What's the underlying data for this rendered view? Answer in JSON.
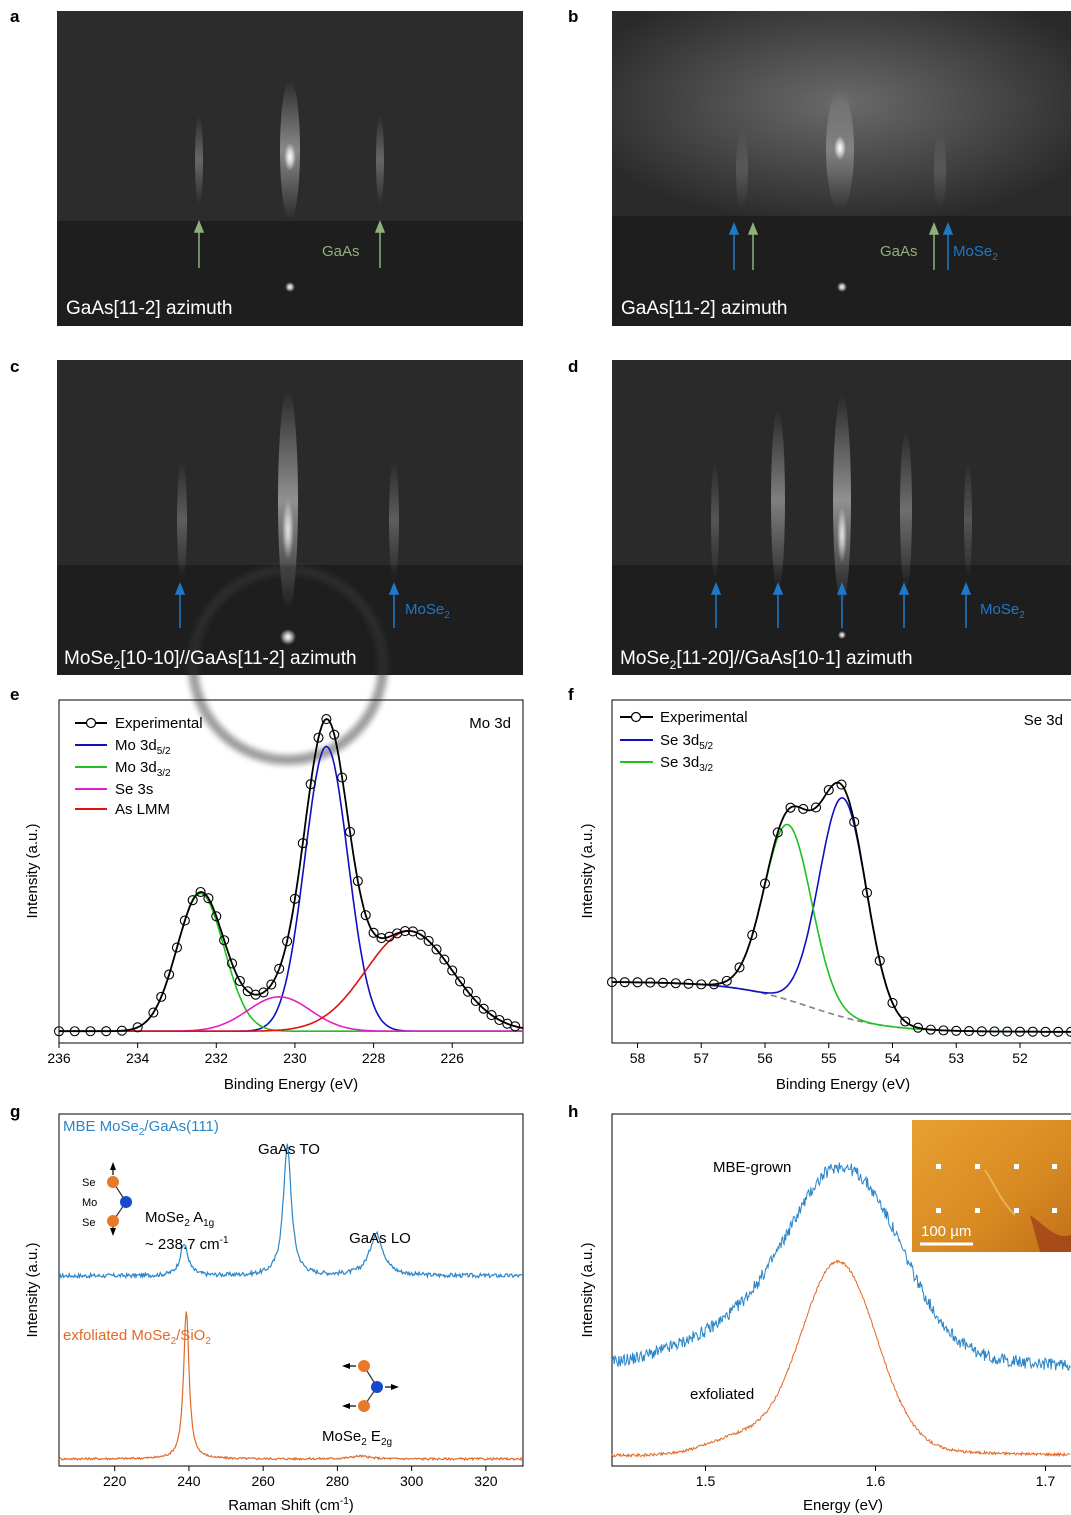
{
  "panel_letters": [
    "a",
    "b",
    "c",
    "d",
    "e",
    "f",
    "g",
    "h"
  ],
  "rheed": {
    "a": {
      "caption": "GaAs[11-2] azimuth",
      "labels": [
        {
          "text": "GaAs",
          "color": "#8fb07a"
        }
      ]
    },
    "b": {
      "caption": "GaAs[11-2] azimuth",
      "labels": [
        {
          "text": "GaAs",
          "color": "#8fb07a"
        },
        {
          "text": "MoSe",
          "sub": "2",
          "color": "#1f78c8"
        }
      ]
    },
    "c": {
      "caption_parts": [
        "MoSe",
        "2",
        "[10-10]//GaAs[11-2] azimuth"
      ],
      "labels": [
        {
          "text": "MoSe",
          "sub": "2",
          "color": "#1f78c8"
        }
      ]
    },
    "d": {
      "caption_parts": [
        "MoSe",
        "2",
        "[11-20]//GaAs[10-1] azimuth"
      ],
      "labels": [
        {
          "text": "MoSe",
          "sub": "2",
          "color": "#1f78c8"
        }
      ]
    }
  },
  "colors": {
    "black": "#000000",
    "blue": "#1010c0",
    "green": "#20c020",
    "magenta": "#e020c8",
    "red": "#e01010",
    "dash": "#808080",
    "raman_blue": "#2a86c8",
    "raman_orange": "#e06a28",
    "gaas_green": "#8fb07a",
    "mose2_blue": "#1f78c8",
    "atom_orange": "#e8782a",
    "atom_blue": "#1848d0"
  },
  "chart_data": [
    {
      "panel": "e",
      "type": "line",
      "xlabel": "Binding Energy (eV)",
      "ylabel": "Intensity (a.u.)",
      "annotation": "Mo 3d",
      "xlim": [
        236,
        224.2
      ],
      "x_ticks": [
        236,
        234,
        232,
        230,
        228,
        226
      ],
      "legend": [
        {
          "name": "Experimental",
          "color": "#000000",
          "marker": "circle"
        },
        {
          "name": "Mo 3d",
          "sub": "5/2",
          "color": "#1010c0"
        },
        {
          "name": "Mo 3d",
          "sub": "3/2",
          "color": "#20c020"
        },
        {
          "name": "Se 3s",
          "color": "#e020c8"
        },
        {
          "name": "As LMM",
          "color": "#e01010"
        }
      ],
      "components": [
        {
          "name": "Mo 3d5/2",
          "center": 229.2,
          "amplitude": 0.91,
          "width": 0.55
        },
        {
          "name": "Mo 3d3/2",
          "center": 232.4,
          "amplitude": 0.44,
          "width": 0.6
        },
        {
          "name": "Se 3s",
          "center": 230.4,
          "amplitude": 0.11,
          "width": 0.8
        },
        {
          "name": "As LMM",
          "center": 227.1,
          "amplitude": 0.32,
          "width": 1.1
        }
      ],
      "baseline": 0.012,
      "experimental_x": [
        236,
        235.6,
        235.2,
        234.8,
        234.4,
        234,
        233.6,
        233.4,
        233.2,
        233,
        232.8,
        232.6,
        232.4,
        232.2,
        232,
        231.8,
        231.6,
        231.4,
        231.2,
        231,
        230.8,
        230.6,
        230.4,
        230.2,
        230,
        229.8,
        229.6,
        229.4,
        229.2,
        229,
        228.8,
        228.6,
        228.4,
        228.2,
        228,
        227.8,
        227.6,
        227.4,
        227.2,
        227,
        226.8,
        226.6,
        226.4,
        226.2,
        226,
        225.8,
        225.6,
        225.4,
        225.2,
        225,
        224.8,
        224.6,
        224.4
      ]
    },
    {
      "panel": "f",
      "type": "line",
      "xlabel": "Binding Energy (eV)",
      "ylabel": "Intensity (a.u.)",
      "annotation": "Se 3d",
      "xlim": [
        58.4,
        51.2
      ],
      "x_ticks": [
        58,
        57,
        56,
        55,
        54,
        53,
        52
      ],
      "legend": [
        {
          "name": "Experimental",
          "color": "#000000",
          "marker": "circle"
        },
        {
          "name": "Se 3d",
          "sub": "5/2",
          "color": "#1010c0"
        },
        {
          "name": "Se 3d",
          "sub": "3/2",
          "color": "#20c020"
        }
      ],
      "components": [
        {
          "name": "Se 3d5/2",
          "center": 54.78,
          "amplitude": 0.7,
          "width": 0.37
        },
        {
          "name": "Se 3d3/2",
          "center": 55.64,
          "amplitude": 0.56,
          "width": 0.37
        }
      ],
      "background": {
        "high": 0.17,
        "low": 0.01,
        "step_center": 55.3,
        "step_width": 0.6
      },
      "experimental_x": [
        58.4,
        58.2,
        58,
        57.8,
        57.6,
        57.4,
        57.2,
        57,
        56.8,
        56.6,
        56.4,
        56.2,
        56,
        55.8,
        55.6,
        55.4,
        55.2,
        55,
        54.8,
        54.6,
        54.4,
        54.2,
        54,
        53.8,
        53.6,
        53.4,
        53.2,
        53,
        52.8,
        52.6,
        52.4,
        52.2,
        52,
        51.8,
        51.6,
        51.4,
        51.2
      ]
    },
    {
      "panel": "g",
      "type": "line",
      "xlabel": "Raman Shift (cm",
      "xlabel_sup": "-1",
      "ylabel": "Intensity (a.u.)",
      "xlim": [
        205,
        330
      ],
      "x_ticks": [
        220,
        240,
        260,
        280,
        300,
        320
      ],
      "series": [
        {
          "name_parts": [
            "MBE MoSe",
            "2",
            "/GaAs(111)"
          ],
          "color": "#2a86c8",
          "offset": 0.54,
          "noise": 0.006,
          "peaks": [
            {
              "center": 238.7,
              "amplitude": 0.09,
              "width": 1.3
            },
            {
              "center": 266.5,
              "amplitude": 0.37,
              "width": 1.3
            },
            {
              "center": 290.5,
              "amplitude": 0.12,
              "width": 2.2
            }
          ]
        },
        {
          "name_parts": [
            "exfoliated MoSe",
            "2",
            "/SiO",
            "2"
          ],
          "color": "#e06a28",
          "offset": 0.02,
          "noise": 0.003,
          "peaks": [
            {
              "center": 239.3,
              "amplitude": 0.42,
              "width": 0.9
            },
            {
              "center": 286,
              "amplitude": 0.008,
              "width": 3
            }
          ]
        }
      ],
      "peak_labels": [
        {
          "text": "GaAs TO",
          "x": 266.5
        },
        {
          "text": "GaAs LO",
          "x": 290.5
        }
      ],
      "mode_labels": [
        {
          "parts": [
            "MoSe",
            "2",
            " A",
            "1g"
          ]
        },
        {
          "text": "~ 238.7 cm",
          "sup": "-1"
        },
        {
          "parts": [
            "MoSe",
            "2",
            " E",
            "2g"
          ]
        }
      ],
      "atom_labels": [
        "Se",
        "Mo",
        "Se"
      ]
    },
    {
      "panel": "h",
      "type": "line",
      "xlabel": "Energy (eV)",
      "ylabel": "Intensity (a.u.)",
      "xlim": [
        1.445,
        1.715
      ],
      "x_ticks": [
        1.5,
        1.6,
        1.7
      ],
      "series": [
        {
          "name": "MBE-grown",
          "color": "#2a86c8",
          "offset": 0.28,
          "noise": 0.018,
          "peaks": [
            {
              "center": 1.583,
              "amplitude": 0.48,
              "width": 0.03
            },
            {
              "center": 1.54,
              "amplitude": 0.14,
              "width": 0.045
            }
          ],
          "tail": 0.1
        },
        {
          "name": "exfoliated",
          "color": "#e06a28",
          "offset": 0.03,
          "noise": 0.004,
          "peaks": [
            {
              "center": 1.578,
              "amplitude": 0.55,
              "width": 0.022
            },
            {
              "center": 1.52,
              "amplitude": 0.05,
              "width": 0.02
            }
          ],
          "tail": 0.04
        }
      ],
      "inset": {
        "scale_bar": "100 µm"
      }
    }
  ]
}
